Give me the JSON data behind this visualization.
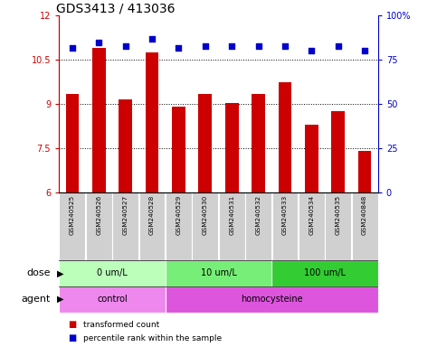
{
  "title": "GDS3413 / 413036",
  "samples": [
    "GSM240525",
    "GSM240526",
    "GSM240527",
    "GSM240528",
    "GSM240529",
    "GSM240530",
    "GSM240531",
    "GSM240532",
    "GSM240533",
    "GSM240534",
    "GSM240535",
    "GSM240848"
  ],
  "bar_values": [
    9.35,
    10.9,
    9.15,
    10.75,
    8.9,
    9.35,
    9.05,
    9.35,
    9.75,
    8.3,
    8.75,
    7.4
  ],
  "percentile_values": [
    82,
    85,
    83,
    87,
    82,
    83,
    83,
    83,
    83,
    80,
    83,
    80
  ],
  "ylim_left": [
    6,
    12
  ],
  "ylim_right": [
    0,
    100
  ],
  "yticks_left": [
    6,
    7.5,
    9,
    10.5,
    12
  ],
  "yticks_right": [
    0,
    25,
    50,
    75,
    100
  ],
  "bar_color": "#cc0000",
  "dot_color": "#0000cc",
  "dose_groups": [
    {
      "label": "0 um/L",
      "start": 0,
      "end": 4,
      "color": "#bbffbb"
    },
    {
      "label": "10 um/L",
      "start": 4,
      "end": 8,
      "color": "#77ee77"
    },
    {
      "label": "100 um/L",
      "start": 8,
      "end": 12,
      "color": "#33cc33"
    }
  ],
  "agent_groups": [
    {
      "label": "control",
      "start": 0,
      "end": 4,
      "color": "#ee88ee"
    },
    {
      "label": "homocysteine",
      "start": 4,
      "end": 12,
      "color": "#dd55dd"
    }
  ],
  "dose_label": "dose",
  "agent_label": "agent",
  "legend_bar_label": "transformed count",
  "legend_dot_label": "percentile rank within the sample",
  "sample_box_color": "#d0d0d0",
  "title_fontsize": 10,
  "tick_fontsize": 7,
  "label_fontsize": 7,
  "row_label_fontsize": 8
}
